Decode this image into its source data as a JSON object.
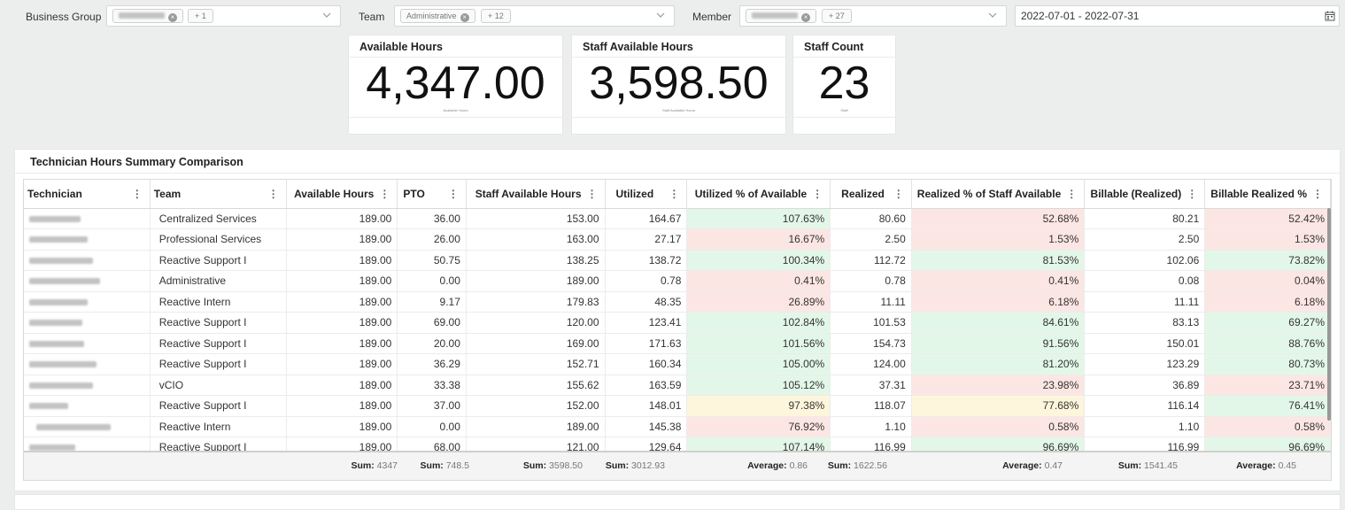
{
  "filters": {
    "business_group_label": "Business Group",
    "business_group_more": "+ 1",
    "team_label": "Team",
    "team_chip": "Administrative",
    "team_more": "+ 12",
    "member_label": "Member",
    "member_more": "+ 27",
    "date_range": "2022-07-01 - 2022-07-31"
  },
  "kpis": [
    {
      "title": "Available Hours",
      "value": "4,347.00",
      "sub": "Available Hours"
    },
    {
      "title": "Staff Available Hours",
      "value": "3,598.50",
      "sub": "Staff Available Hours"
    },
    {
      "title": "Staff Count",
      "value": "23",
      "sub": "Staff"
    }
  ],
  "table": {
    "title": "Technician Hours Summary Comparison",
    "columns": [
      "Technician",
      "Team",
      "Available Hours",
      "PTO",
      "Staff Available Hours",
      "Utilized",
      "Utilized % of Available",
      "Realized",
      "Realized % of Staff Available",
      "Billable (Realized)",
      "Billable Realized %"
    ],
    "rows": [
      {
        "team": "Centralized Services",
        "available": "189.00",
        "pto": "36.00",
        "staff_available": "153.00",
        "utilized": "164.67",
        "util_pct": "107.63%",
        "util_status": "good",
        "realized": "80.60",
        "real_pct": "52.68%",
        "real_status": "poor",
        "billable": "80.21",
        "bill_pct": "52.42%",
        "bill_status": "poor"
      },
      {
        "team": "Professional Services",
        "available": "189.00",
        "pto": "26.00",
        "staff_available": "163.00",
        "utilized": "27.17",
        "util_pct": "16.67%",
        "util_status": "poor",
        "realized": "2.50",
        "real_pct": "1.53%",
        "real_status": "poor",
        "billable": "2.50",
        "bill_pct": "1.53%",
        "bill_status": "poor"
      },
      {
        "team": "Reactive Support I",
        "available": "189.00",
        "pto": "50.75",
        "staff_available": "138.25",
        "utilized": "138.72",
        "util_pct": "100.34%",
        "util_status": "good",
        "realized": "112.72",
        "real_pct": "81.53%",
        "real_status": "good",
        "billable": "102.06",
        "bill_pct": "73.82%",
        "bill_status": "good"
      },
      {
        "team": "Administrative",
        "available": "189.00",
        "pto": "0.00",
        "staff_available": "189.00",
        "utilized": "0.78",
        "util_pct": "0.41%",
        "util_status": "poor",
        "realized": "0.78",
        "real_pct": "0.41%",
        "real_status": "poor",
        "billable": "0.08",
        "bill_pct": "0.04%",
        "bill_status": "poor"
      },
      {
        "team": "Reactive Intern",
        "available": "189.00",
        "pto": "9.17",
        "staff_available": "179.83",
        "utilized": "48.35",
        "util_pct": "26.89%",
        "util_status": "poor",
        "realized": "11.11",
        "real_pct": "6.18%",
        "real_status": "poor",
        "billable": "11.11",
        "bill_pct": "6.18%",
        "bill_status": "poor"
      },
      {
        "team": "Reactive Support I",
        "available": "189.00",
        "pto": "69.00",
        "staff_available": "120.00",
        "utilized": "123.41",
        "util_pct": "102.84%",
        "util_status": "good",
        "realized": "101.53",
        "real_pct": "84.61%",
        "real_status": "good",
        "billable": "83.13",
        "bill_pct": "69.27%",
        "bill_status": "good"
      },
      {
        "team": "Reactive Support I",
        "available": "189.00",
        "pto": "20.00",
        "staff_available": "169.00",
        "utilized": "171.63",
        "util_pct": "101.56%",
        "util_status": "good",
        "realized": "154.73",
        "real_pct": "91.56%",
        "real_status": "good",
        "billable": "150.01",
        "bill_pct": "88.76%",
        "bill_status": "good"
      },
      {
        "team": "Reactive Support I",
        "available": "189.00",
        "pto": "36.29",
        "staff_available": "152.71",
        "utilized": "160.34",
        "util_pct": "105.00%",
        "util_status": "good",
        "realized": "124.00",
        "real_pct": "81.20%",
        "real_status": "good",
        "billable": "123.29",
        "bill_pct": "80.73%",
        "bill_status": "good"
      },
      {
        "team": "vCIO",
        "available": "189.00",
        "pto": "33.38",
        "staff_available": "155.62",
        "utilized": "163.59",
        "util_pct": "105.12%",
        "util_status": "good",
        "realized": "37.31",
        "real_pct": "23.98%",
        "real_status": "poor",
        "billable": "36.89",
        "bill_pct": "23.71%",
        "bill_status": "poor"
      },
      {
        "team": "Reactive Support I",
        "available": "189.00",
        "pto": "37.00",
        "staff_available": "152.00",
        "utilized": "148.01",
        "util_pct": "97.38%",
        "util_status": "warn",
        "realized": "118.07",
        "real_pct": "77.68%",
        "real_status": "warn",
        "billable": "116.14",
        "bill_pct": "76.41%",
        "bill_status": "good"
      },
      {
        "team": "Reactive Intern",
        "available": "189.00",
        "pto": "0.00",
        "staff_available": "189.00",
        "utilized": "145.38",
        "util_pct": "76.92%",
        "util_status": "poor",
        "realized": "1.10",
        "real_pct": "0.58%",
        "real_status": "poor",
        "billable": "1.10",
        "bill_pct": "0.58%",
        "bill_status": "poor"
      },
      {
        "team": "Reactive Support I",
        "available": "189.00",
        "pto": "68.00",
        "staff_available": "121.00",
        "utilized": "129.64",
        "util_pct": "107.14%",
        "util_status": "good",
        "realized": "116.99",
        "real_pct": "96.69%",
        "real_status": "good",
        "billable": "116.99",
        "bill_pct": "96.69%",
        "bill_status": "good"
      }
    ],
    "footer": {
      "available": {
        "label": "Sum:",
        "value": "4347"
      },
      "pto": {
        "label": "Sum:",
        "value": "748.5"
      },
      "staff_available": {
        "label": "Sum:",
        "value": "3598.50"
      },
      "utilized": {
        "label": "Sum:",
        "value": "3012.93"
      },
      "util_pct": {
        "label": "Average:",
        "value": "0.86"
      },
      "realized": {
        "label": "Sum:",
        "value": "1622.56"
      },
      "real_pct": {
        "label": "Average:",
        "value": "0.47"
      },
      "billable": {
        "label": "Sum:",
        "value": "1541.45"
      },
      "bill_pct": {
        "label": "Average:",
        "value": "0.45"
      }
    }
  },
  "status_colors": {
    "good": "#e3f7e8",
    "poor": "#fce6e3",
    "warn": "#fdf6dc"
  },
  "icons": {
    "chip_remove": "close-circle-icon",
    "dropdown": "chevron-down-icon",
    "date": "calendar-icon",
    "column_menu": "vertical-dots-icon"
  }
}
